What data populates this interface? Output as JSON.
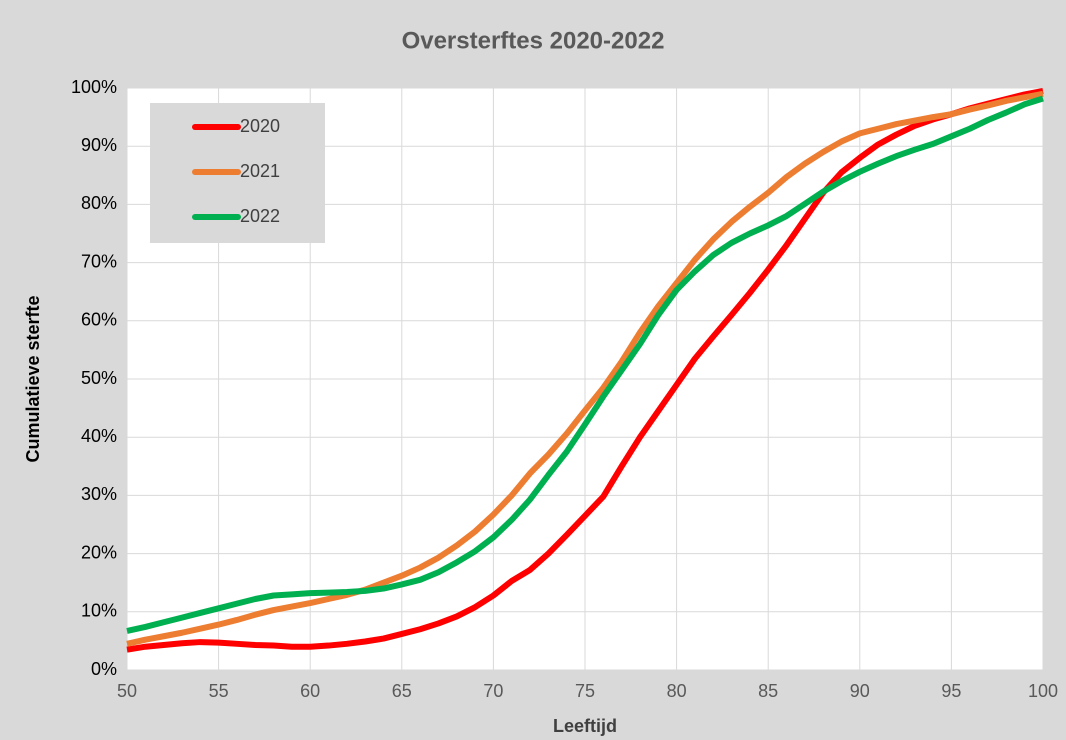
{
  "chart_data": {
    "type": "line",
    "title": "Oversterftes 2020-2022",
    "x_label": "Leeftijd",
    "y_label": "Cumulatieve sterfte",
    "x": [
      50,
      51,
      52,
      53,
      54,
      55,
      56,
      57,
      58,
      59,
      60,
      61,
      62,
      63,
      64,
      65,
      66,
      67,
      68,
      69,
      70,
      71,
      72,
      73,
      74,
      75,
      76,
      77,
      78,
      79,
      80,
      81,
      82,
      83,
      84,
      85,
      86,
      87,
      88,
      89,
      90,
      91,
      92,
      93,
      94,
      95,
      96,
      97,
      98,
      99,
      100
    ],
    "series": [
      {
        "name": "2020",
        "color": "#ff0000",
        "values": [
          3.5,
          4,
          4.3,
          4.6,
          4.8,
          4.7,
          4.5,
          4.3,
          4.2,
          4.0,
          4.0,
          4.2,
          4.5,
          4.9,
          5.4,
          6.2,
          7.0,
          8.0,
          9.2,
          10.8,
          12.8,
          15.3,
          17.2,
          20,
          23.2,
          26.5,
          29.8,
          35,
          40,
          44.5,
          49,
          53.5,
          57.3,
          61,
          64.8,
          68.8,
          73,
          77.5,
          82,
          85.5,
          88,
          90.3,
          92,
          93.5,
          94.6,
          95.5,
          96.5,
          97.3,
          98.1,
          98.9,
          99.5
        ]
      },
      {
        "name": "2021",
        "color": "#ed7d31",
        "values": [
          4.5,
          5.2,
          5.8,
          6.4,
          7.1,
          7.8,
          8.6,
          9.5,
          10.3,
          10.9,
          11.5,
          12.2,
          12.9,
          13.8,
          15,
          16.2,
          17.6,
          19.3,
          21.4,
          23.8,
          26.7,
          30,
          33.8,
          37,
          40.6,
          44.6,
          48.5,
          53,
          58,
          62.5,
          66.5,
          70.5,
          74,
          77,
          79.6,
          82,
          84.7,
          87,
          89,
          90.8,
          92.2,
          93,
          93.8,
          94.4,
          95,
          95.5,
          96.3,
          97,
          97.8,
          98.4,
          99
        ]
      },
      {
        "name": "2022",
        "color": "#00b050",
        "values": [
          6.7,
          7.4,
          8.2,
          9,
          9.8,
          10.6,
          11.4,
          12.2,
          12.8,
          13,
          13.2,
          13.3,
          13.4,
          13.6,
          14,
          14.7,
          15.5,
          16.8,
          18.5,
          20.4,
          22.8,
          25.8,
          29.3,
          33.5,
          37.5,
          42.2,
          47,
          51.5,
          56,
          61,
          65.3,
          68.5,
          71.3,
          73.4,
          75,
          76.4,
          78,
          80.1,
          82.2,
          84,
          85.6,
          87,
          88.3,
          89.4,
          90.4,
          91.7,
          93,
          94.5,
          95.8,
          97.2,
          98.2
        ]
      }
    ],
    "xlim": [
      50,
      100
    ],
    "xticks": [
      50,
      55,
      60,
      65,
      70,
      75,
      80,
      85,
      90,
      95,
      100
    ],
    "ylim": [
      0,
      100
    ],
    "yticks": [
      {
        "value": 0,
        "label": "0%"
      },
      {
        "value": 10,
        "label": "10%"
      },
      {
        "value": 20,
        "label": "20%"
      },
      {
        "value": 30,
        "label": "30%"
      },
      {
        "value": 40,
        "label": "40%"
      },
      {
        "value": 50,
        "label": "50%"
      },
      {
        "value": 60,
        "label": "60%"
      },
      {
        "value": 70,
        "label": "70%"
      },
      {
        "value": 80,
        "label": "80%"
      },
      {
        "value": 90,
        "label": "90%"
      },
      {
        "value": 100,
        "label": "100%"
      }
    ],
    "grid": true,
    "legend": "upper left"
  }
}
